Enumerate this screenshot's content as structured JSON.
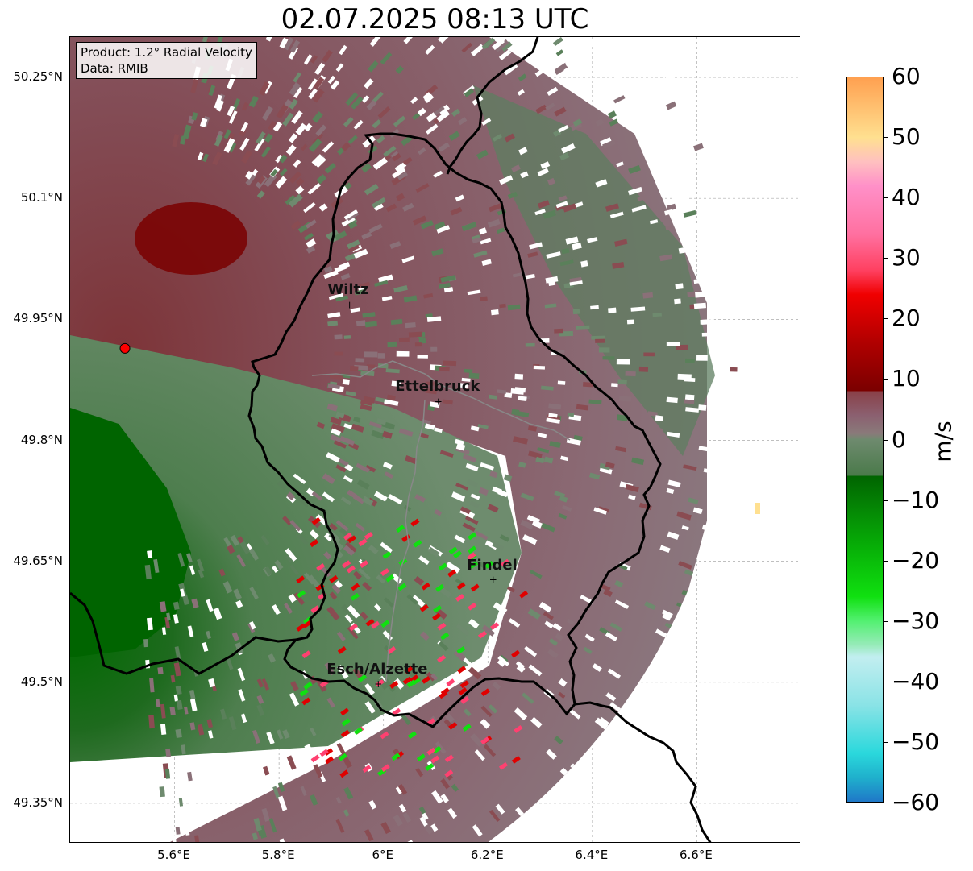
{
  "title": "02.07.2025 08:13 UTC",
  "infobox": {
    "product": "Product: 1.2° Radial Velocity",
    "data": "Data: RMIB"
  },
  "y_axis": {
    "ticks": [
      "50.25°N",
      "50.1°N",
      "49.95°N",
      "49.8°N",
      "49.65°N",
      "49.5°N",
      "49.35°N"
    ],
    "tick_values": [
      50.25,
      50.1,
      49.95,
      49.8,
      49.65,
      49.5,
      49.35
    ]
  },
  "x_axis": {
    "ticks": [
      "5.6°E",
      "5.8°E",
      "6°E",
      "6.2°E",
      "6.4°E",
      "6.6°E"
    ],
    "tick_values": [
      5.6,
      5.8,
      6.0,
      6.2,
      6.4,
      6.6
    ]
  },
  "map_extent": {
    "lon": [
      5.4,
      6.8
    ],
    "lat": [
      49.3,
      50.3
    ]
  },
  "grid": true,
  "cities": [
    {
      "name": "Wiltz",
      "lon": 5.935,
      "lat": 49.968
    },
    {
      "name": "Ettelbruck",
      "lon": 6.105,
      "lat": 49.848
    },
    {
      "name": "Findel",
      "lon": 6.21,
      "lat": 49.627
    },
    {
      "name": "Esch/Alzette",
      "lon": 5.99,
      "lat": 49.498
    }
  ],
  "radar_site": {
    "lon": 5.505,
    "lat": 49.914,
    "color": "#ff0000"
  },
  "colorbar": {
    "label": "m/s",
    "min": -60,
    "max": 60,
    "ticks": [
      "60",
      "50",
      "40",
      "30",
      "20",
      "10",
      "0",
      "−10",
      "−20",
      "−30",
      "−40",
      "−50",
      "−60"
    ],
    "tick_values": [
      60,
      50,
      40,
      30,
      20,
      10,
      0,
      -10,
      -20,
      -30,
      -40,
      -50,
      -60
    ],
    "stops": [
      {
        "v": -60,
        "color": "#1f78c8"
      },
      {
        "v": -56,
        "color": "#1fb0cc"
      },
      {
        "v": -52,
        "color": "#2ad8dc"
      },
      {
        "v": -44,
        "color": "#8ae3e6"
      },
      {
        "v": -36,
        "color": "#c2eef0"
      },
      {
        "v": -34,
        "color": "#96ebb8"
      },
      {
        "v": -30,
        "color": "#52f070"
      },
      {
        "v": -26,
        "color": "#10e010"
      },
      {
        "v": -18,
        "color": "#07b007"
      },
      {
        "v": -12,
        "color": "#058a05"
      },
      {
        "v": -6,
        "color": "#006400"
      },
      {
        "v": -6,
        "color": "#4a7a4a"
      },
      {
        "v": 0,
        "color": "#6e8a6e"
      },
      {
        "v": 1,
        "color": "#8a7a7a"
      },
      {
        "v": 4,
        "color": "#8b6070"
      },
      {
        "v": 8,
        "color": "#8a4048"
      },
      {
        "v": 8,
        "color": "#7a0000"
      },
      {
        "v": 16,
        "color": "#b00000"
      },
      {
        "v": 24,
        "color": "#f00000"
      },
      {
        "v": 28,
        "color": "#ff4060"
      },
      {
        "v": 34,
        "color": "#ff70a0"
      },
      {
        "v": 42,
        "color": "#ff90c8"
      },
      {
        "v": 46,
        "color": "#ffc0c0"
      },
      {
        "v": 50,
        "color": "#ffe090"
      },
      {
        "v": 55,
        "color": "#ffc070"
      },
      {
        "v": 60,
        "color": "#ffa050"
      }
    ]
  },
  "velocity_colors": {
    "receding_strong": "#7a0000",
    "receding": "#8a4c52",
    "near_zero_pos": "#8a7078",
    "near_zero_neg": "#6e8a6e",
    "approaching": "#5a805a",
    "approaching_strong": "#006400",
    "folded_green": "#10e010",
    "folded_pink": "#ff4070",
    "folded_red": "#e00000"
  }
}
